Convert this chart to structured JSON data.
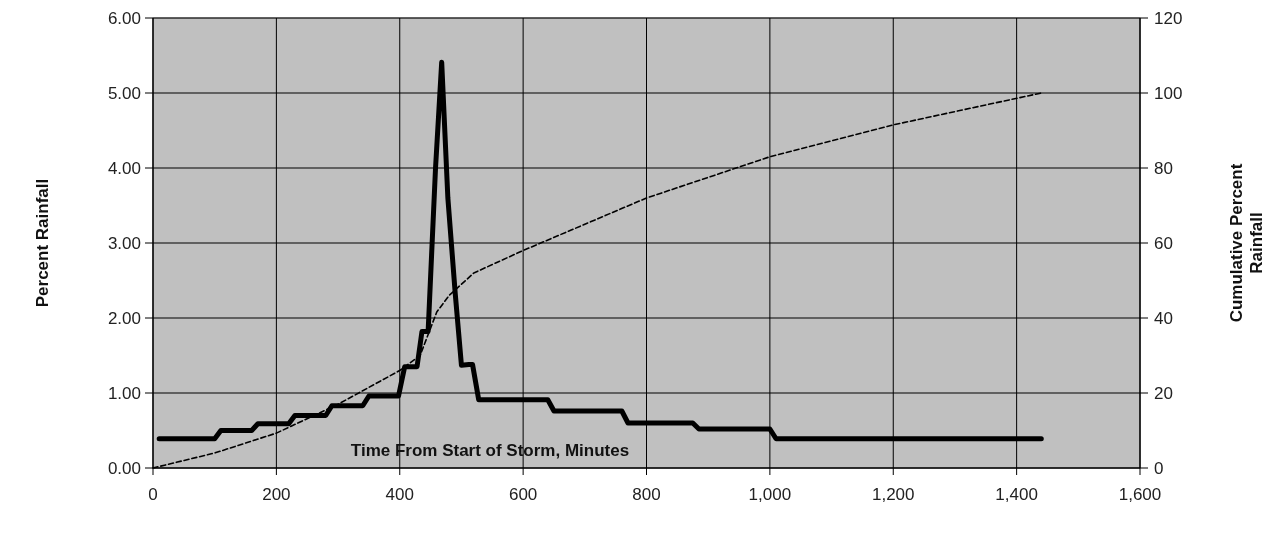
{
  "chart_data": {
    "type": "line",
    "xlabel": "Time From Start of Storm, Minutes",
    "ylabel": "Percent Rainfall",
    "y2label": "Cumulative Percent Rainfall",
    "xlim": [
      0,
      1600
    ],
    "xticks": [
      0,
      200,
      400,
      600,
      800,
      {
        "value": 1000,
        "label": "1,000"
      },
      {
        "value": 1200,
        "label": "1,200"
      },
      {
        "value": 1400,
        "label": "1,400"
      },
      {
        "value": 1600,
        "label": "1,600"
      }
    ],
    "ylim": [
      0,
      6
    ],
    "yticks": [
      {
        "value": 0,
        "label": "0.00"
      },
      {
        "value": 1,
        "label": "1.00"
      },
      {
        "value": 2,
        "label": "2.00"
      },
      {
        "value": 3,
        "label": "3.00"
      },
      {
        "value": 4,
        "label": "4.00"
      },
      {
        "value": 5,
        "label": "5.00"
      },
      {
        "value": 6,
        "label": "6.00"
      }
    ],
    "y2lim": [
      0,
      120
    ],
    "y2ticks": [
      0,
      20,
      40,
      60,
      80,
      100,
      120
    ],
    "grid": true,
    "marker": "none",
    "series": [
      {
        "color": "#000000",
        "line_style": "solid",
        "x": [
          10,
          100,
          110,
          160,
          170,
          220,
          230,
          280,
          290,
          340,
          350,
          398,
          408,
          428,
          436,
          446,
          458,
          468,
          478,
          490,
          500,
          512,
          518,
          528,
          640,
          650,
          760,
          770,
          875,
          885,
          1000,
          1010,
          1440
        ],
        "values": [
          0.39,
          0.39,
          0.5,
          0.5,
          0.59,
          0.59,
          0.7,
          0.7,
          0.83,
          0.83,
          0.96,
          0.96,
          1.35,
          1.35,
          1.82,
          1.82,
          4.0,
          5.41,
          3.6,
          2.32,
          1.37,
          1.38,
          1.38,
          0.91,
          0.91,
          0.76,
          0.76,
          0.6,
          0.6,
          0.52,
          0.52,
          0.39,
          0.39
        ]
      },
      {
        "color": "#000000",
        "line_style": "dashed",
        "axis": "y2",
        "x": [
          0,
          100,
          200,
          300,
          400,
          433,
          460,
          480,
          520,
          600,
          700,
          800,
          1000,
          1200,
          1440
        ],
        "values": [
          0,
          4,
          9.3,
          17,
          26,
          30,
          41.6,
          46,
          52,
          58,
          65,
          72,
          83,
          91.5,
          100
        ]
      }
    ]
  }
}
